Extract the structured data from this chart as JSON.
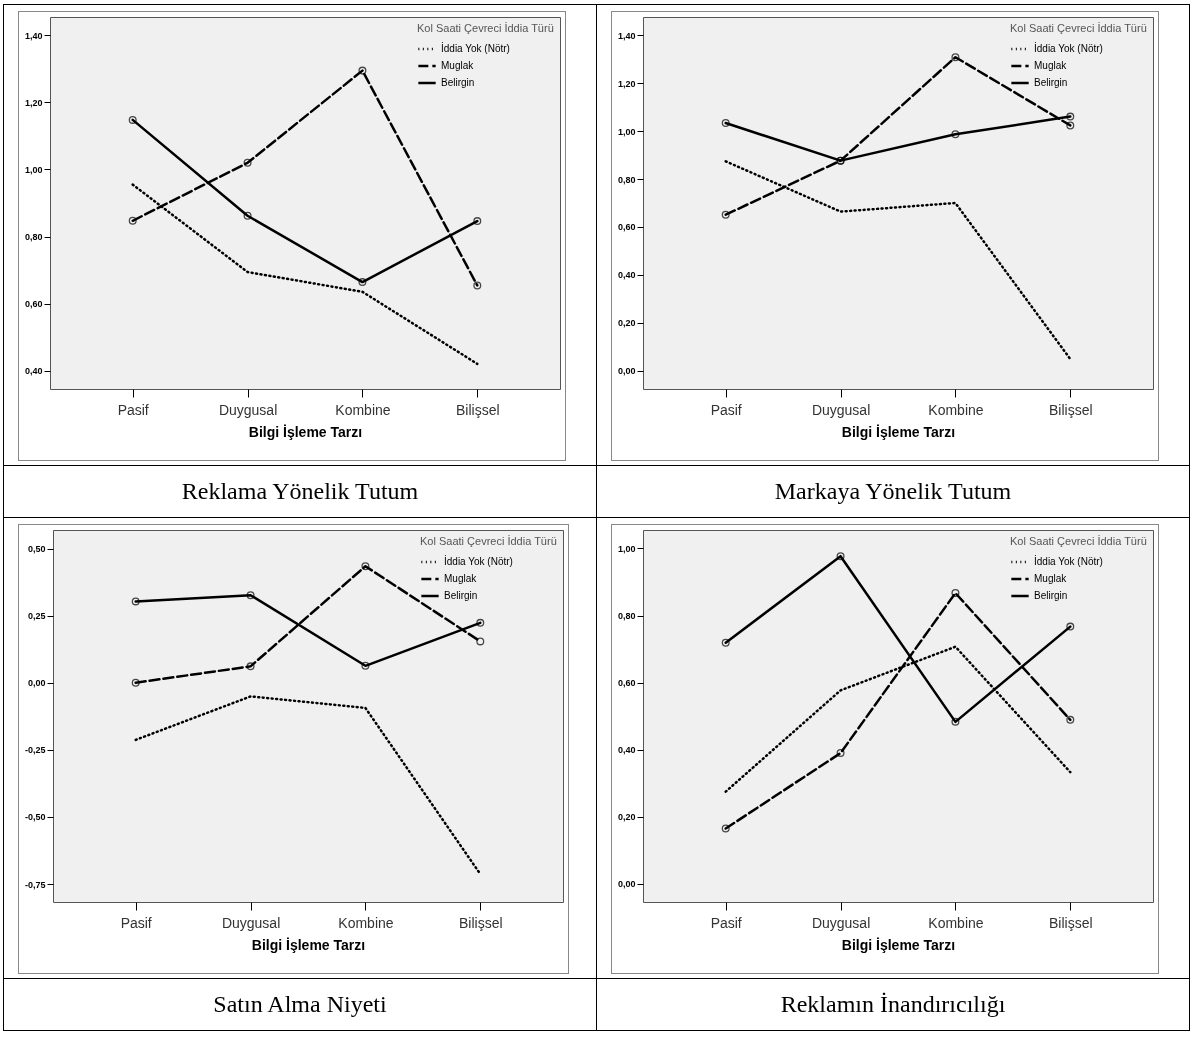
{
  "chart_data": [
    {
      "type": "line",
      "title": "Reklama Yönelik Tutum",
      "xlabel": "Bilgi İşleme Tarzı",
      "legend_title": "Kol Saati Çevreci İddia Türü",
      "legend": "top right",
      "grid": false,
      "categories": [
        "Pasif",
        "Duygusal",
        "Kombine",
        "Bilişsel"
      ],
      "ylim": [
        0.345,
        1.455
      ],
      "yticks": [
        {
          "value": 0.4,
          "label": "0,40"
        },
        {
          "value": 0.6,
          "label": "0,60"
        },
        {
          "value": 0.8,
          "label": "0,80"
        },
        {
          "value": 1.0,
          "label": "1,00"
        },
        {
          "value": 1.2,
          "label": "1,20"
        },
        {
          "value": 1.4,
          "label": "1,40"
        }
      ],
      "series": [
        {
          "name": "İddia Yok (Nötr)",
          "color": "#000000",
          "line_style": "dotted",
          "marker": "none",
          "values": [
            0.955,
            0.694,
            0.635,
            0.42
          ]
        },
        {
          "name": "Muglak",
          "color": "#000000",
          "line_style": "dashed",
          "marker": "circle",
          "values": [
            0.847,
            1.02,
            1.295,
            0.654
          ]
        },
        {
          "name": "Belirgin",
          "color": "#000000",
          "line_style": "solid",
          "marker": "circle",
          "values": [
            1.148,
            0.862,
            0.664,
            0.846
          ]
        }
      ]
    },
    {
      "type": "line",
      "title": "Markaya Yönelik Tutum",
      "xlabel": "Bilgi İşleme Tarzı",
      "legend_title": "Kol Saati Çevreci İddia Türü",
      "legend": "top right",
      "grid": false,
      "categories": [
        "Pasif",
        "Duygusal",
        "Kombine",
        "Bilişsel"
      ],
      "ylim": [
        -0.077,
        1.477
      ],
      "yticks": [
        {
          "value": 0,
          "label": "0,00"
        },
        {
          "value": 0.2,
          "label": "0,20"
        },
        {
          "value": 0.4,
          "label": "0,40"
        },
        {
          "value": 0.6,
          "label": "0,60"
        },
        {
          "value": 0.8,
          "label": "0,80"
        },
        {
          "value": 1.0,
          "label": "1,00"
        },
        {
          "value": 1.2,
          "label": "1,20"
        },
        {
          "value": 1.4,
          "label": "1,40"
        }
      ],
      "series": [
        {
          "name": "İddia Yok (Nötr)",
          "color": "#000000",
          "line_style": "dotted",
          "marker": "none",
          "values": [
            0.874,
            0.664,
            0.7,
            0.048
          ]
        },
        {
          "name": "Muglak",
          "color": "#000000",
          "line_style": "dashed",
          "marker": "circle",
          "values": [
            0.651,
            0.877,
            1.309,
            1.024
          ]
        },
        {
          "name": "Belirgin",
          "color": "#000000",
          "line_style": "solid",
          "marker": "circle",
          "values": [
            1.034,
            0.877,
            0.987,
            1.061
          ]
        }
      ]
    },
    {
      "type": "line",
      "title": "Satın Alma Niyeti",
      "xlabel": "Bilgi İşleme Tarzı",
      "legend_title": "Kol Saati Çevreci İddia Türü",
      "legend": "top right",
      "grid": false,
      "categories": [
        "Pasif",
        "Duygusal",
        "Kombine",
        "Bilişsel"
      ],
      "ylim": [
        -0.817,
        0.569
      ],
      "yticks": [
        {
          "value": -0.75,
          "label": "-0,75"
        },
        {
          "value": -0.5,
          "label": "-0,50"
        },
        {
          "value": -0.25,
          "label": "-0,25"
        },
        {
          "value": 0,
          "label": "0,00"
        },
        {
          "value": 0.25,
          "label": "0,25"
        },
        {
          "value": 0.5,
          "label": "0,50"
        }
      ],
      "series": [
        {
          "name": "İddia Yok (Nötr)",
          "color": "#000000",
          "line_style": "dotted",
          "marker": "none",
          "values": [
            -0.213,
            -0.051,
            -0.094,
            -0.713
          ]
        },
        {
          "name": "Muglak",
          "color": "#000000",
          "line_style": "dashed",
          "marker": "circle",
          "values": [
            0.0,
            0.061,
            0.434,
            0.154
          ]
        },
        {
          "name": "Belirgin",
          "color": "#000000",
          "line_style": "solid",
          "marker": "circle",
          "values": [
            0.303,
            0.326,
            0.063,
            0.223
          ]
        }
      ]
    },
    {
      "type": "line",
      "title": "Reklamın İnandırıcılığı",
      "xlabel": "Bilgi İşleme Tarzı",
      "legend_title": "Kol Saati Çevreci İddia Türü",
      "legend": "top right",
      "grid": false,
      "categories": [
        "Pasif",
        "Duygusal",
        "Kombine",
        "Bilişsel"
      ],
      "ylim": [
        -0.054,
        1.055
      ],
      "yticks": [
        {
          "value": 0,
          "label": "0,00"
        },
        {
          "value": 0.2,
          "label": "0,20"
        },
        {
          "value": 0.4,
          "label": "0,40"
        },
        {
          "value": 0.6,
          "label": "0,60"
        },
        {
          "value": 0.8,
          "label": "0,80"
        },
        {
          "value": 1.0,
          "label": "1,00"
        }
      ],
      "series": [
        {
          "name": "İddia Yok (Nötr)",
          "color": "#000000",
          "line_style": "dotted",
          "marker": "none",
          "values": [
            0.275,
            0.577,
            0.707,
            0.333
          ]
        },
        {
          "name": "Muglak",
          "color": "#000000",
          "line_style": "dashed",
          "marker": "circle",
          "values": [
            0.165,
            0.39,
            0.867,
            0.489
          ]
        },
        {
          "name": "Belirgin",
          "color": "#000000",
          "line_style": "solid",
          "marker": "circle",
          "values": [
            0.719,
            0.977,
            0.483,
            0.767
          ]
        }
      ]
    }
  ]
}
